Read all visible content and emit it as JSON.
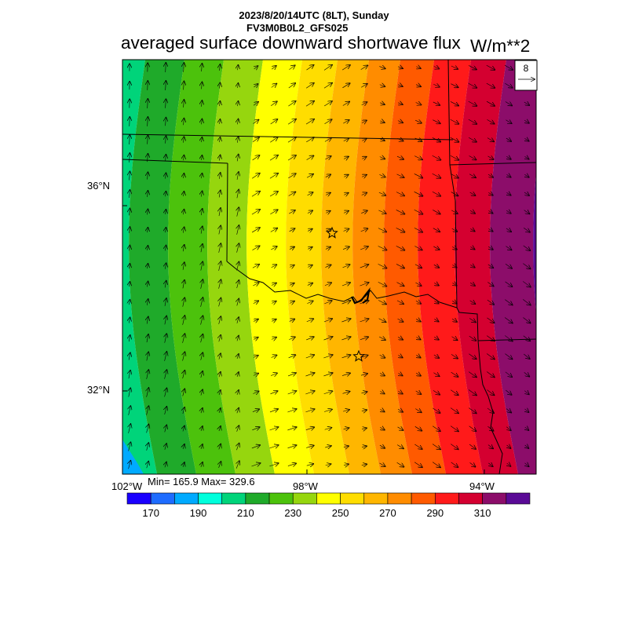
{
  "header": {
    "datetime": "2023/8/20/14UTC (8LT), Sunday",
    "model": "FV3M0B0L2_GFS025",
    "title": "averaged surface downward shortwave flux",
    "units": "W/m**2"
  },
  "map": {
    "lat_ticks": [
      "36°N",
      "32°N"
    ],
    "lon_ticks": [
      "102°W",
      "98°W",
      "94°W"
    ],
    "min_max": "Min= 165.9 Max= 329.6",
    "vector_reference": "8",
    "markers": [
      "star",
      "star"
    ]
  },
  "colorbar": {
    "labels": [
      "170",
      "190",
      "210",
      "230",
      "250",
      "270",
      "290",
      "310"
    ],
    "colors": [
      "#1a00ff",
      "#1e6cff",
      "#00aaff",
      "#00ffdc",
      "#00d47a",
      "#1faa2a",
      "#4cc20c",
      "#96d60e",
      "#ffff00",
      "#ffdd00",
      "#ffb600",
      "#ff8c00",
      "#ff5a00",
      "#ff1a1a",
      "#d40030",
      "#8c0d6a",
      "#5a0a96"
    ]
  }
}
